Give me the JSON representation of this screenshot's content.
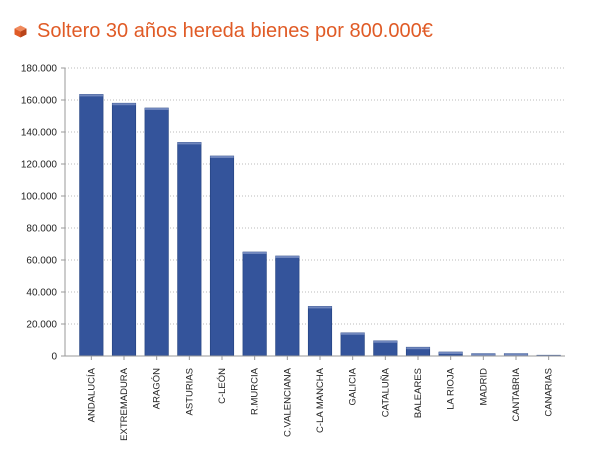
{
  "title": "Soltero 30 años hereda bienes por 800.000€",
  "title_icon": "cube-icon",
  "colors": {
    "title": "#e05b26",
    "bar": "#34549b",
    "bar_edge": "#22407e",
    "grid": "#bbbbbb",
    "axis": "#9a9a9a"
  },
  "chart_data": {
    "type": "bar",
    "title": "Soltero 30 años hereda bienes por 800.000€",
    "xlabel": "",
    "ylabel": "",
    "ylim": [
      0,
      180000
    ],
    "grid": false,
    "categories": [
      "ANDALUCÍA",
      "EXTREMADURA",
      "ARAGÓN",
      "ASTURIAS",
      "C-LEÓN",
      "R.MURCIA",
      "C.VALENCIANA",
      "C-LA MANCHA",
      "GALICIA",
      "CATALUÑA",
      "BALEARES",
      "LA RIOJA",
      "MADRID",
      "CANTABRIA",
      "CANARIAS"
    ],
    "values": [
      163500,
      158000,
      155000,
      133500,
      125000,
      65000,
      62500,
      31000,
      14500,
      9500,
      5500,
      2500,
      1500,
      1500,
      500
    ],
    "yticks": [
      0,
      20000,
      40000,
      60000,
      80000,
      100000,
      120000,
      140000,
      160000,
      180000
    ],
    "ytick_labels": [
      "0",
      "20.000",
      "40.000",
      "60.000",
      "80.000",
      "100.000",
      "120.000",
      "140.000",
      "160.000",
      "180.000"
    ]
  }
}
